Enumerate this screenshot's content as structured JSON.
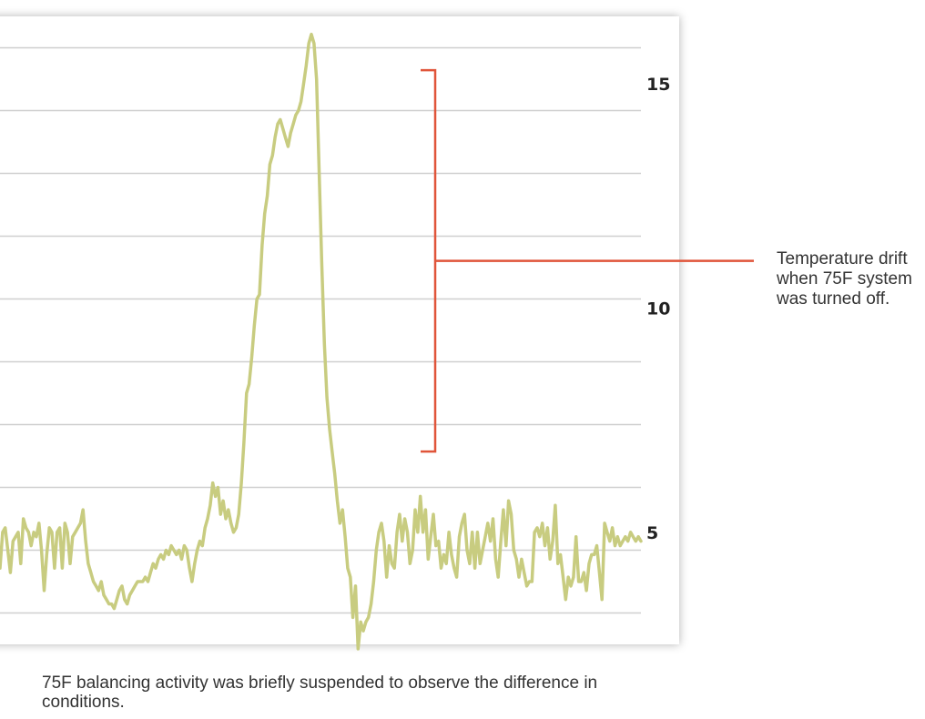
{
  "chart_data": {
    "type": "line",
    "title": "",
    "xlabel": "",
    "ylabel": "",
    "ylim": [
      2.5,
      16.5
    ],
    "y_ticks": [
      5,
      10,
      15
    ],
    "y_axis_position": "right",
    "grid": true,
    "grid_step": 1.4,
    "line_color": "#c8cc80",
    "series": [
      {
        "values": [
          4.2,
          5.0,
          5.1,
          4.6,
          4.1,
          4.8,
          4.9,
          5.0,
          4.3,
          5.3,
          5.1,
          5.0,
          4.7,
          5.0,
          4.9,
          5.2,
          4.6,
          3.7,
          4.5,
          5.1,
          5.0,
          4.2,
          5.0,
          5.1,
          4.2,
          5.2,
          5.0,
          4.3,
          4.9,
          5.0,
          5.1,
          5.2,
          5.5,
          4.8,
          4.3,
          4.1,
          3.9,
          3.8,
          3.7,
          3.9,
          3.6,
          3.5,
          3.4,
          3.4,
          3.3,
          3.5,
          3.7,
          3.8,
          3.5,
          3.4,
          3.6,
          3.7,
          3.8,
          3.9,
          3.9,
          3.9,
          4.0,
          3.9,
          4.1,
          4.3,
          4.2,
          4.4,
          4.5,
          4.4,
          4.6,
          4.5,
          4.7,
          4.6,
          4.5,
          4.6,
          4.4,
          4.7,
          4.6,
          4.2,
          3.9,
          4.3,
          4.6,
          4.8,
          4.7,
          5.1,
          5.3,
          5.6,
          6.1,
          5.8,
          6.0,
          5.4,
          5.7,
          5.3,
          5.5,
          5.2,
          5.0,
          5.1,
          5.4,
          6.1,
          7.0,
          8.1,
          8.3,
          8.9,
          9.6,
          10.2,
          10.3,
          11.4,
          12.1,
          12.5,
          13.2,
          13.4,
          13.8,
          14.1,
          14.2,
          14.0,
          13.8,
          13.6,
          13.9,
          14.1,
          14.3,
          14.4,
          14.6,
          15.0,
          15.4,
          15.9,
          16.1,
          15.9,
          15.1,
          13.0,
          11.0,
          9.2,
          8.0,
          7.3,
          6.8,
          6.3,
          5.7,
          5.2,
          5.5,
          4.9,
          4.2,
          4.0,
          3.1,
          3.8,
          2.4,
          3.0,
          2.8,
          3.0,
          3.1,
          3.4,
          3.9,
          4.6,
          5.0,
          5.2,
          4.8,
          4.0,
          4.7,
          4.3,
          4.2,
          5.0,
          5.4,
          4.8,
          5.3,
          5.0,
          4.3,
          4.6,
          5.5,
          5.0,
          5.8,
          5.0,
          5.5,
          4.4,
          4.9,
          5.4,
          4.7,
          4.8,
          4.2,
          4.5,
          4.3,
          5.0,
          4.5,
          4.2,
          4.0,
          4.9,
          5.2,
          5.4,
          4.6,
          4.3,
          5.0,
          4.2,
          5.0,
          4.3,
          4.6,
          4.9,
          5.2,
          4.8,
          5.3,
          4.4,
          4.0,
          4.8,
          5.5,
          4.7,
          5.7,
          5.4,
          4.6,
          4.4,
          4.0,
          4.4,
          4.1,
          3.8,
          3.9,
          3.9,
          5.0,
          5.1,
          4.9,
          5.2,
          4.7,
          5.1,
          4.4,
          4.8,
          5.6,
          4.3,
          4.5,
          4.0,
          3.5,
          4.0,
          3.8,
          4.0,
          4.9,
          3.9,
          3.9,
          4.1,
          3.7,
          4.3,
          4.5,
          4.5,
          4.7,
          4.1,
          3.5,
          5.2,
          5.0,
          4.8,
          5.1,
          4.7,
          4.9,
          4.7,
          4.8,
          4.9,
          4.8,
          5.0,
          4.9,
          4.8,
          4.9,
          4.8
        ]
      }
    ],
    "annotation": {
      "text": "Temperature drift when 75F system was turned off.",
      "bracket_from": 6.8,
      "bracket_to": 15.3,
      "color": "#e0553a"
    }
  },
  "caption": "75F balancing activity was briefly suspended to observe the difference in conditions."
}
